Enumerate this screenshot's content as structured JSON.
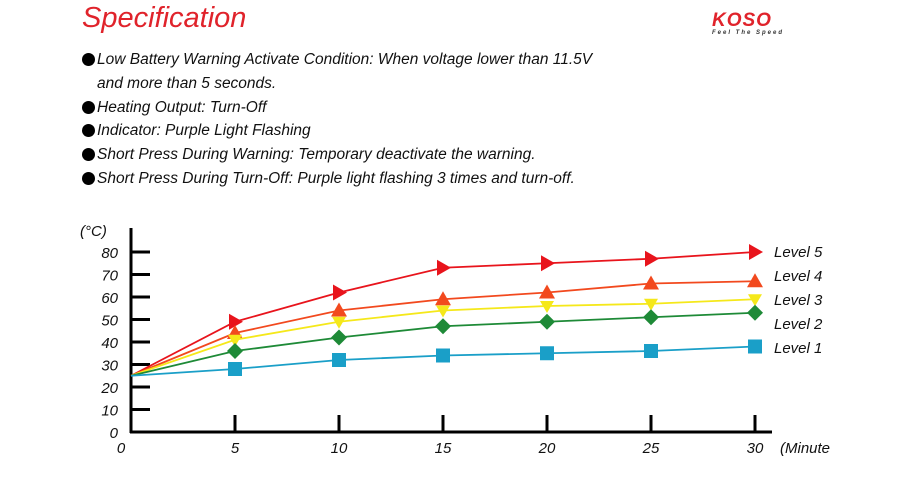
{
  "header": {
    "title": "Specification",
    "logo_text": "KOSO",
    "logo_tagline": "Feel The Speed"
  },
  "bullets": [
    {
      "line1": "Low Battery Warning Activate Condition: When voltage lower than 11.5V",
      "line2": "and more than 5 seconds."
    },
    {
      "line1": "Heating Output: Turn-Off"
    },
    {
      "line1": "Indicator: Purple Light Flashing"
    },
    {
      "line1": "Short Press During Warning: Temporary deactivate the warning."
    },
    {
      "line1": "Short Press During Turn-Off: Purple light flashing 3 times and turn-off."
    }
  ],
  "chart_data": {
    "type": "line",
    "title": "",
    "xlabel": "(Minute",
    "ylabel": "(°C)",
    "x": [
      0,
      5,
      10,
      15,
      20,
      25,
      30
    ],
    "xlim": [
      0,
      30
    ],
    "ylim": [
      0,
      80
    ],
    "x_ticks": [
      "0",
      "5",
      "10",
      "15",
      "20",
      "25",
      "30"
    ],
    "y_ticks": [
      "0",
      "10",
      "20",
      "30",
      "40",
      "50",
      "60",
      "70",
      "80"
    ],
    "grid": false,
    "legend_placement": "right",
    "series": [
      {
        "name": "Level 5",
        "color": "#e8141c",
        "marker": "triangle-right",
        "values": [
          25,
          49,
          62,
          73,
          75,
          77,
          80
        ]
      },
      {
        "name": "Level 4",
        "color": "#f2491e",
        "marker": "triangle-up",
        "values": [
          25,
          44,
          54,
          59,
          62,
          66,
          67
        ]
      },
      {
        "name": "Level 3",
        "color": "#f5e81a",
        "marker": "triangle-down",
        "values": [
          25,
          41,
          49,
          54,
          56,
          57,
          59
        ]
      },
      {
        "name": "Level 2",
        "color": "#1e8a37",
        "marker": "diamond",
        "values": [
          25,
          36,
          42,
          47,
          49,
          51,
          53
        ]
      },
      {
        "name": "Level 1",
        "color": "#1a9fc8",
        "marker": "square",
        "values": [
          25,
          28,
          32,
          34,
          35,
          36,
          38
        ]
      }
    ]
  }
}
